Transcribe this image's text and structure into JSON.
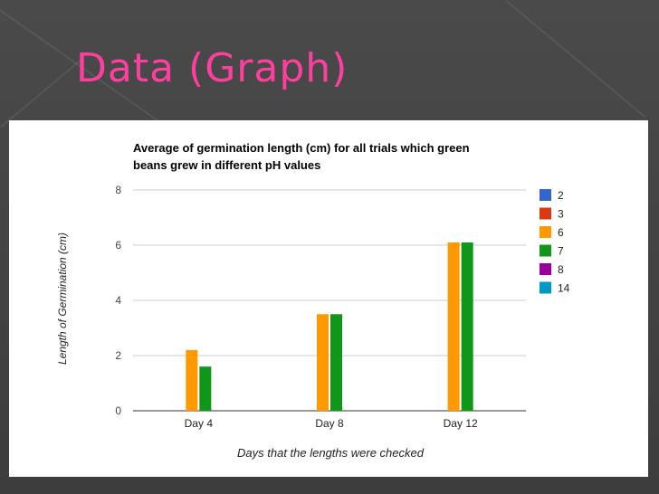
{
  "slide": {
    "title": "Data (Graph)"
  },
  "colors": {
    "title": "#ff3f9f",
    "background": "#444444",
    "panel": "#ffffff"
  },
  "chart_data": {
    "type": "bar",
    "title_lines": [
      "Average of germination length (cm) for all trials which green",
      "beans grew in different pH values"
    ],
    "xlabel": "Days that the lengths were checked",
    "ylabel": "Length of Germination (cm)",
    "categories": [
      "Day 4",
      "Day 8",
      "Day 12"
    ],
    "ylim": [
      0,
      8
    ],
    "yticks": [
      0,
      2,
      4,
      6,
      8
    ],
    "grid": true,
    "legend_position": "right",
    "series": [
      {
        "name": "2",
        "color": "#3366cc",
        "values": [
          null,
          null,
          null
        ]
      },
      {
        "name": "3",
        "color": "#dc3912",
        "values": [
          null,
          null,
          null
        ]
      },
      {
        "name": "6",
        "color": "#ff9900",
        "values": [
          2.2,
          3.5,
          6.1
        ]
      },
      {
        "name": "7",
        "color": "#109618",
        "values": [
          1.6,
          3.5,
          6.1
        ]
      },
      {
        "name": "8",
        "color": "#990099",
        "values": [
          null,
          null,
          null
        ]
      },
      {
        "name": "14",
        "color": "#0099c6",
        "values": [
          null,
          null,
          null
        ]
      }
    ]
  }
}
